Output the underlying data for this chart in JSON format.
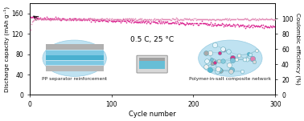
{
  "title": "0.5 C, 25 °C",
  "xlabel": "Cycle number",
  "ylabel_left": "Discharge capacity (mAh g⁻¹)",
  "ylabel_right": "Coulombic efficiency (%)",
  "xlim": [
    0,
    300
  ],
  "ylim_left": [
    0,
    180
  ],
  "ylim_right": [
    0,
    120
  ],
  "yticks_left": [
    0,
    40,
    80,
    120,
    160
  ],
  "yticks_right": [
    0,
    20,
    40,
    60,
    80,
    100
  ],
  "xticks": [
    0,
    100,
    200,
    300
  ],
  "capacity_start": 152,
  "capacity_end": 134,
  "color_capacity": "#d6007f",
  "color_ce": "#e080b0",
  "label_pp": "PP separator reinforcement",
  "label_polymer": "Polymer-in-salt composite network",
  "background": "#ffffff",
  "n_cycles": 300,
  "circle_left_color": "#b8dff0",
  "circle_right_color": "#b8dff0",
  "layer_colors_blue": [
    "#7ec8e3",
    "#5ab4d4",
    "#7ec8e3"
  ],
  "layer_colors_gray": [
    "#c0c0c0",
    "#d8d8d8"
  ],
  "node_colors": [
    "#5bbcd6",
    "#c8e8f5",
    "#d0d0d0",
    "#ffffff",
    "#e8f4f8",
    "#a0c8dc"
  ]
}
